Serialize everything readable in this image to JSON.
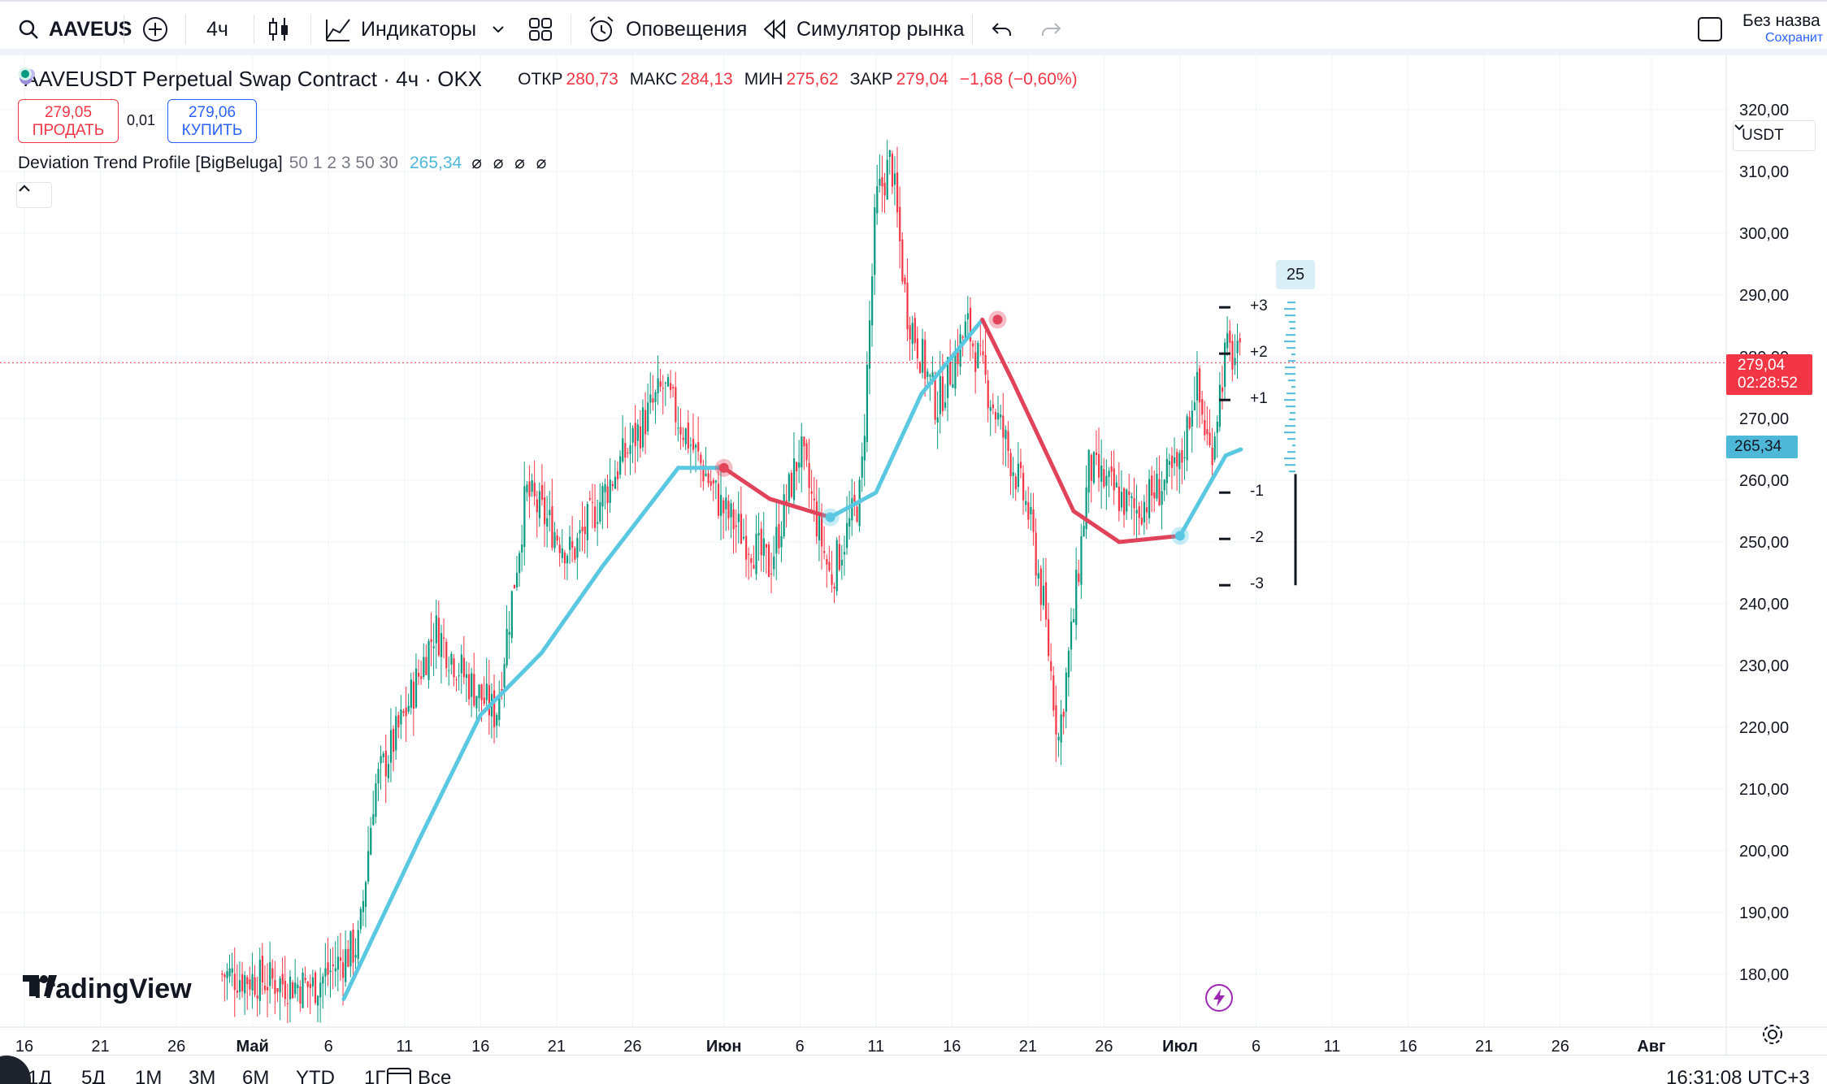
{
  "toolbar": {
    "symbol": "AAVEUS",
    "interval": "4ч",
    "indicators_label": "Индикаторы",
    "alerts_label": "Оповещения",
    "replay_label": "Симулятор рынка",
    "layout_name": "Без назва",
    "layout_sub": "Сохранит"
  },
  "legend": {
    "title": "AAVEUSDT Perpetual Swap Contract · 4ч · OKX",
    "open_label": "ОТКР",
    "open": "280,73",
    "high_label": "МАКС",
    "high": "284,13",
    "low_label": "МИН",
    "low": "275,62",
    "close_label": "ЗАКР",
    "close": "279,04",
    "change": "−1,68 (−0,60%)"
  },
  "trade": {
    "sell_price": "279,05",
    "sell_label": "ПРОДАТЬ",
    "spread": "0,01",
    "buy_price": "279,06",
    "buy_label": "КУПИТЬ"
  },
  "indicator": {
    "name": "Deviation Trend Profile [BigBeluga]",
    "params": "50 1 2 3 50 30",
    "value": "265,34",
    "hidden_marks": "⌀ ⌀ ⌀ ⌀"
  },
  "price_scale": {
    "currency": "USDT",
    "last_price": "279,04",
    "countdown": "02:28:52",
    "trend_value": "265,34",
    "colors": {
      "down": "#f23645",
      "up": "#089981",
      "trend": "#5bc8e2",
      "down_trend": "#e0435a",
      "flat": "#7e7aa8",
      "tag_red": "#f23645",
      "tag_blue": "#4eb8d9"
    }
  },
  "deviation_labels": [
    "+3",
    "+2",
    "+1",
    "-1",
    "-2",
    "-3"
  ],
  "profile_count": "25",
  "brand": "TradingView",
  "bottom": {
    "ranges": [
      "1Д",
      "5Д",
      "1М",
      "3М",
      "6М",
      "YTD",
      "1Г",
      "Все"
    ],
    "clock": "16:31:08 UTC+3"
  },
  "chart_data": {
    "type": "candlestick",
    "y_ticks": [
      "320,00",
      "310,00",
      "300,00",
      "290,00",
      "280,00",
      "270,00",
      "260,00",
      "250,00",
      "240,00",
      "230,00",
      "220,00",
      "210,00",
      "200,00",
      "190,00",
      "180,00"
    ],
    "ylim": [
      175,
      325
    ],
    "x_ticks": [
      "16",
      "21",
      "26",
      "Май",
      "6",
      "11",
      "16",
      "21",
      "26",
      "Июн",
      "6",
      "11",
      "16",
      "21",
      "26",
      "Июл",
      "6",
      "11",
      "16",
      "21",
      "26",
      "Авг"
    ],
    "price_path": [
      {
        "date": "Апр 29",
        "price": 180
      },
      {
        "date": "Май 5",
        "price": 178
      },
      {
        "date": "Май 8",
        "price": 185
      },
      {
        "date": "Май 9",
        "price": 210
      },
      {
        "date": "Май 11",
        "price": 222
      },
      {
        "date": "Май 13",
        "price": 236
      },
      {
        "date": "Май 15",
        "price": 228
      },
      {
        "date": "Май 17",
        "price": 222
      },
      {
        "date": "Май 19",
        "price": 258
      },
      {
        "date": "Май 22",
        "price": 248
      },
      {
        "date": "Май 25",
        "price": 262
      },
      {
        "date": "Май 28",
        "price": 275
      },
      {
        "date": "Июн 1",
        "price": 255
      },
      {
        "date": "Июн 4",
        "price": 246
      },
      {
        "date": "Июн 6",
        "price": 265
      },
      {
        "date": "Июн 8",
        "price": 244
      },
      {
        "date": "Июн 10",
        "price": 258
      },
      {
        "date": "Июн 11",
        "price": 305
      },
      {
        "date": "Июн 12",
        "price": 312
      },
      {
        "date": "Июн 13",
        "price": 288
      },
      {
        "date": "Июн 15",
        "price": 272
      },
      {
        "date": "Июн 17",
        "price": 285
      },
      {
        "date": "Июн 19",
        "price": 270
      },
      {
        "date": "Июн 21",
        "price": 255
      },
      {
        "date": "Июн 22",
        "price": 240
      },
      {
        "date": "Июн 23",
        "price": 218
      },
      {
        "date": "Июн 24",
        "price": 238
      },
      {
        "date": "Июн 25",
        "price": 262
      },
      {
        "date": "Июн 28",
        "price": 255
      },
      {
        "date": "Июл 1",
        "price": 262
      },
      {
        "date": "Июл 2",
        "price": 276
      },
      {
        "date": "Июл 3",
        "price": 264
      },
      {
        "date": "Июл 4",
        "price": 281
      },
      {
        "date": "Июл 5",
        "price": 279
      }
    ],
    "trend_line": [
      {
        "date": "Май 7",
        "price": 176
      },
      {
        "date": "Май 12",
        "price": 202
      },
      {
        "date": "Май 16",
        "price": 222
      },
      {
        "date": "Май 20",
        "price": 232
      },
      {
        "date": "Май 24",
        "price": 246
      },
      {
        "date": "Май 29",
        "price": 262
      },
      {
        "date": "Июн 1",
        "price": 262
      },
      {
        "date": "Июн 4",
        "price": 257
      },
      {
        "date": "Июн 8",
        "price": 254
      },
      {
        "date": "Июн 11",
        "price": 258
      },
      {
        "date": "Июн 14",
        "price": 274
      },
      {
        "date": "Июн 18",
        "price": 286
      },
      {
        "date": "Июн 20",
        "price": 276
      },
      {
        "date": "Июн 24",
        "price": 255
      },
      {
        "date": "Июн 27",
        "price": 250
      },
      {
        "date": "Июл 1",
        "price": 251
      },
      {
        "date": "Июл 4",
        "price": 264
      },
      {
        "date": "Июл 5",
        "price": 265
      }
    ],
    "signals": [
      {
        "date": "Июн 1",
        "price": 262,
        "kind": "down"
      },
      {
        "date": "Июн 8",
        "price": 254,
        "kind": "up"
      },
      {
        "date": "Июн 19",
        "price": 286,
        "kind": "down"
      },
      {
        "date": "Июл 1",
        "price": 251,
        "kind": "up"
      }
    ],
    "deviation_levels": [
      288,
      280.5,
      273,
      258,
      250.5,
      243
    ]
  }
}
